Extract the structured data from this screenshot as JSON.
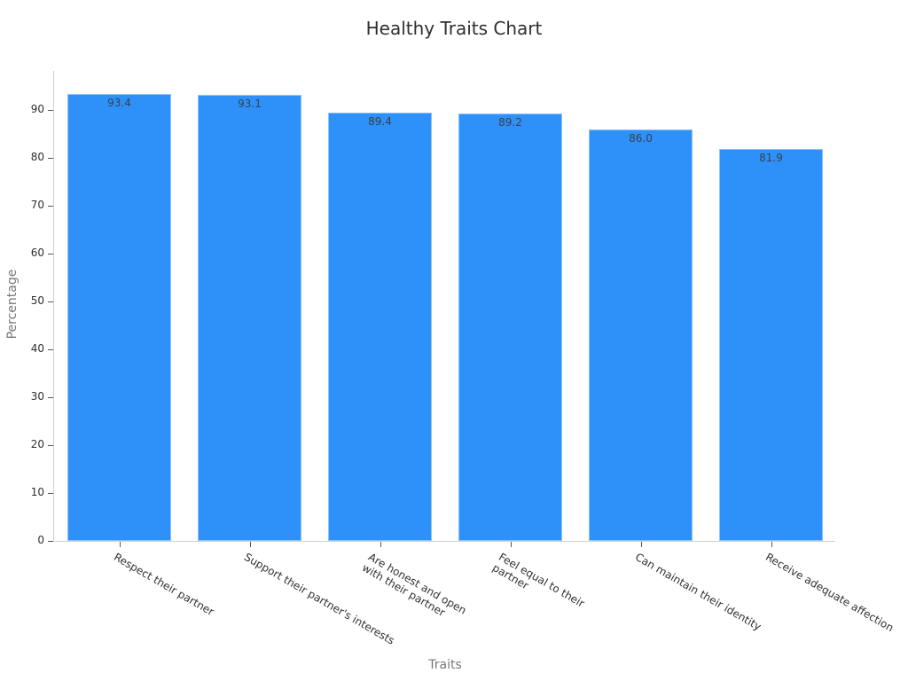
{
  "chart_data": {
    "type": "bar",
    "title": "Healthy Traits Chart",
    "xlabel": "Traits",
    "ylabel": "Percentage",
    "categories": [
      "Respect their partner",
      "Support their partner's interests",
      "Are honest and open with their partner",
      "Feel equal to their partner",
      "Can maintain their identity",
      "Receive adequate affection"
    ],
    "category_display": [
      "Respect their partner",
      "Support their partner's interests",
      "Are honest and open\nwith their partner",
      "Feel equal to their\npartner",
      "Can maintain their identity",
      "Receive adequate affection"
    ],
    "values": [
      93.4,
      93.1,
      89.4,
      89.2,
      86.0,
      81.9
    ],
    "value_labels": [
      "93.4",
      "93.1",
      "89.4",
      "89.2",
      "86.0",
      "81.9"
    ],
    "ylim": [
      0,
      98
    ],
    "yticks": [
      0,
      10,
      20,
      30,
      40,
      50,
      60,
      70,
      80,
      90
    ],
    "grid": false,
    "legend": null,
    "bar_color": "#2e91f9"
  }
}
